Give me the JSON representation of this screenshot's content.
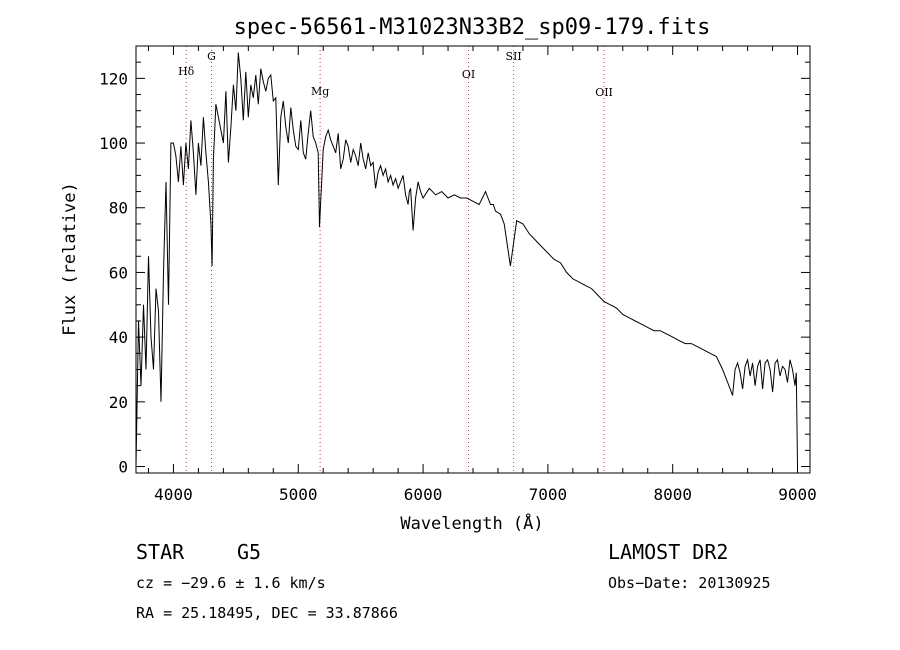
{
  "chart_data": {
    "type": "line",
    "title": "spec-56561-M31023N33B2_sp09-179.fits",
    "xlabel": "Wavelength (Å)",
    "ylabel": "Flux (relative)",
    "xlim": [
      3700,
      9100
    ],
    "ylim": [
      -2,
      130
    ],
    "xticks": [
      4000,
      5000,
      6000,
      7000,
      8000,
      9000
    ],
    "yticks": [
      0,
      20,
      40,
      60,
      80,
      100,
      120
    ],
    "grid": false,
    "line_color": "#000000",
    "marker_color": "#c04040",
    "spectral_lines": [
      {
        "name": "Hδ",
        "x": 4102
      },
      {
        "name": "G",
        "x": 4305
      },
      {
        "name": "Mg",
        "x": 5175
      },
      {
        "name": "OI",
        "x": 6364
      },
      {
        "name": "SII",
        "x": 6725
      },
      {
        "name": "OII",
        "x": 7450
      }
    ],
    "series": [
      {
        "x": [
          3700,
          3720,
          3740,
          3760,
          3780,
          3800,
          3820,
          3840,
          3860,
          3880,
          3900,
          3920,
          3940,
          3960,
          3980,
          4000,
          4020,
          4040,
          4060,
          4080,
          4100,
          4120,
          4140,
          4160,
          4180,
          4200,
          4220,
          4240,
          4260,
          4280,
          4300,
          4310,
          4320,
          4340,
          4360,
          4380,
          4400,
          4420,
          4440,
          4460,
          4480,
          4500,
          4520,
          4540,
          4560,
          4580,
          4600,
          4620,
          4640,
          4660,
          4680,
          4700,
          4720,
          4740,
          4760,
          4780,
          4800,
          4820,
          4840,
          4860,
          4880,
          4900,
          4920,
          4940,
          4960,
          4980,
          5000,
          5020,
          5040,
          5060,
          5080,
          5100,
          5120,
          5140,
          5160,
          5170,
          5180,
          5190,
          5200,
          5220,
          5240,
          5260,
          5280,
          5300,
          5320,
          5340,
          5360,
          5380,
          5400,
          5420,
          5440,
          5460,
          5480,
          5500,
          5520,
          5540,
          5560,
          5580,
          5600,
          5620,
          5640,
          5660,
          5680,
          5700,
          5720,
          5740,
          5760,
          5780,
          5800,
          5820,
          5840,
          5860,
          5880,
          5890,
          5900,
          5920,
          5940,
          5960,
          5980,
          6000,
          6050,
          6100,
          6150,
          6200,
          6250,
          6300,
          6350,
          6400,
          6450,
          6500,
          6540,
          6563,
          6580,
          6620,
          6650,
          6700,
          6750,
          6800,
          6850,
          6900,
          6950,
          7000,
          7050,
          7100,
          7150,
          7200,
          7250,
          7300,
          7350,
          7400,
          7450,
          7500,
          7550,
          7600,
          7650,
          7700,
          7750,
          7800,
          7850,
          7900,
          7950,
          8000,
          8050,
          8100,
          8150,
          8200,
          8250,
          8300,
          8350,
          8400,
          8450,
          8480,
          8500,
          8520,
          8540,
          8560,
          8580,
          8600,
          8620,
          8640,
          8660,
          8680,
          8700,
          8720,
          8740,
          8760,
          8780,
          8800,
          8820,
          8840,
          8860,
          8880,
          8900,
          8920,
          8940,
          8960,
          8980,
          8990,
          9000
        ],
        "y": [
          0,
          45,
          25,
          50,
          30,
          65,
          40,
          30,
          55,
          48,
          20,
          60,
          88,
          50,
          100,
          100,
          96,
          88,
          99,
          87,
          100,
          92,
          107,
          97,
          84,
          100,
          93,
          108,
          97,
          88,
          75,
          62,
          95,
          112,
          108,
          104,
          100,
          116,
          94,
          105,
          118,
          110,
          128,
          120,
          107,
          122,
          108,
          118,
          114,
          121,
          112,
          123,
          119,
          116,
          120,
          121,
          113,
          114,
          87,
          108,
          113,
          105,
          100,
          111,
          104,
          99,
          98,
          107,
          97,
          95,
          103,
          110,
          102,
          100,
          97,
          74,
          82,
          90,
          98,
          102,
          104,
          101,
          99,
          97,
          103,
          92,
          95,
          101,
          99,
          94,
          98,
          96,
          93,
          100,
          95,
          92,
          97,
          93,
          94,
          86,
          91,
          93,
          90,
          92,
          88,
          90,
          87,
          89,
          86,
          88,
          90,
          84,
          81,
          85,
          86,
          73,
          83,
          88,
          85,
          83,
          86,
          84,
          85,
          83,
          84,
          83,
          83,
          82,
          81,
          85,
          81,
          81,
          79,
          78,
          75,
          62,
          76,
          75,
          72,
          70,
          68,
          66,
          64,
          63,
          60,
          58,
          57,
          56,
          55,
          53,
          51,
          50,
          49,
          47,
          46,
          45,
          44,
          43,
          42,
          42,
          41,
          40,
          39,
          38,
          38,
          37,
          36,
          35,
          34,
          30,
          25,
          22,
          30,
          32,
          29,
          24,
          31,
          33,
          28,
          32,
          25,
          31,
          33,
          24,
          32,
          33,
          30,
          23,
          32,
          33,
          28,
          31,
          30,
          26,
          33,
          30,
          25,
          29,
          0
        ]
      }
    ]
  },
  "info": {
    "object_type": "STAR",
    "subclass": "G5",
    "survey": "LAMOST DR2",
    "cz": "cz = −29.6 ± 1.6 km/s",
    "obs_date": "Obs−Date: 20130925",
    "coords": "RA =  25.18495, DEC =  33.87866"
  }
}
